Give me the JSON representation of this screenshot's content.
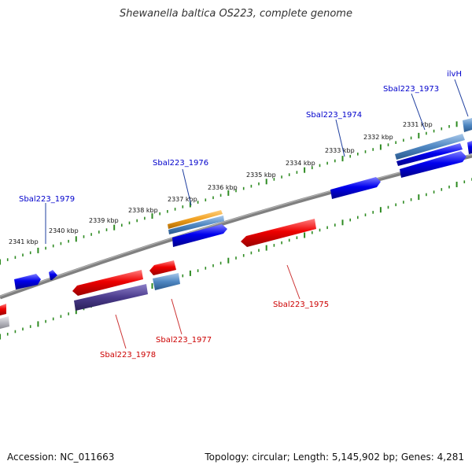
{
  "title": "Shewanella baltica OS223, complete genome",
  "footer": {
    "accession": "Accession: NC_011663",
    "summary": "Topology: circular; Length: 5,145,902 bp; Genes: 4,281"
  },
  "colors": {
    "backbone": "#808080",
    "ticks": "#2e8b22",
    "forward_label": "#0000cc",
    "reverse_label": "#cc0000",
    "forward_gene": "#0000ee",
    "reverse_gene": "#ee0000",
    "light_blue_gene": "#4f87c2",
    "orange_gene": "#f0a020",
    "purple_gene": "#4a3b8c",
    "grey_gene": "#b8b8c0"
  },
  "scale": {
    "labels": [
      "2341 kbp",
      "2340 kbp",
      "2339 kbp",
      "2338 kbp",
      "2337 kbp",
      "2336 kbp",
      "2335 kbp",
      "2334 kbp",
      "2333 kbp",
      "2332 kbp",
      "2331 kbp"
    ]
  },
  "gene_labels": [
    {
      "name": "Sbal223_1979",
      "strand": "forward"
    },
    {
      "name": "Sbal223_1976",
      "strand": "forward"
    },
    {
      "name": "Sbal223_1974",
      "strand": "forward"
    },
    {
      "name": "Sbal223_1973",
      "strand": "forward"
    },
    {
      "name": "ilvH",
      "strand": "forward"
    },
    {
      "name": "Sbal223_1978",
      "strand": "reverse"
    },
    {
      "name": "Sbal223_1977",
      "strand": "reverse"
    },
    {
      "name": "Sbal223_1975",
      "strand": "reverse"
    }
  ]
}
